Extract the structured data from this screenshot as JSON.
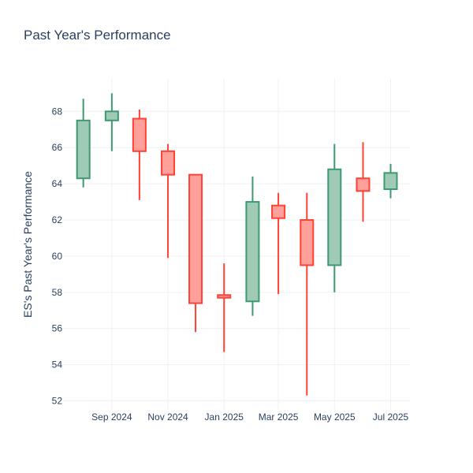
{
  "chart_data": {
    "type": "candlestick",
    "title": "Past Year's Performance",
    "ylabel": "ES's Past Year's Performance",
    "ylim": [
      51.5,
      69.8
    ],
    "xlim": [
      "2024-07-10",
      "2025-07-22"
    ],
    "ytick_values": [
      52,
      54,
      56,
      58,
      60,
      62,
      64,
      66,
      68
    ],
    "xticks": [
      {
        "date": "2024-09-01",
        "label": "Sep 2024"
      },
      {
        "date": "2024-11-01",
        "label": "Nov 2024"
      },
      {
        "date": "2025-01-01",
        "label": "Jan 2025"
      },
      {
        "date": "2025-03-01",
        "label": "Mar 2025"
      },
      {
        "date": "2025-05-01",
        "label": "May 2025"
      },
      {
        "date": "2025-07-01",
        "label": "Jul 2025"
      }
    ],
    "grid": true,
    "colors": {
      "increasing": "#3d9970",
      "decreasing": "#ff4136",
      "increasing_fill": "#9fcab6",
      "decreasing_fill": "#ffa09b"
    },
    "candles": [
      {
        "date": "2024-08-01",
        "open": 64.3,
        "high": 68.7,
        "low": 63.8,
        "close": 67.5
      },
      {
        "date": "2024-09-01",
        "open": 67.5,
        "high": 69.0,
        "low": 65.8,
        "close": 68.0
      },
      {
        "date": "2024-10-01",
        "open": 67.6,
        "high": 68.1,
        "low": 63.1,
        "close": 65.8
      },
      {
        "date": "2024-11-01",
        "open": 65.8,
        "high": 66.2,
        "low": 59.9,
        "close": 64.5
      },
      {
        "date": "2024-12-01",
        "open": 64.5,
        "high": 64.5,
        "low": 55.8,
        "close": 57.4
      },
      {
        "date": "2025-01-01",
        "open": 57.85,
        "high": 59.6,
        "low": 54.7,
        "close": 57.7
      },
      {
        "date": "2025-02-01",
        "open": 57.5,
        "high": 64.4,
        "low": 56.7,
        "close": 63.0
      },
      {
        "date": "2025-03-01",
        "open": 62.8,
        "high": 63.5,
        "low": 57.9,
        "close": 62.1
      },
      {
        "date": "2025-04-01",
        "open": 62.0,
        "high": 63.5,
        "low": 52.3,
        "close": 59.5
      },
      {
        "date": "2025-05-01",
        "open": 59.5,
        "high": 66.2,
        "low": 58.0,
        "close": 64.8
      },
      {
        "date": "2025-06-01",
        "open": 64.3,
        "high": 66.3,
        "low": 61.9,
        "close": 63.6
      },
      {
        "date": "2025-07-01",
        "open": 63.7,
        "high": 65.1,
        "low": 63.2,
        "close": 64.6
      }
    ]
  }
}
